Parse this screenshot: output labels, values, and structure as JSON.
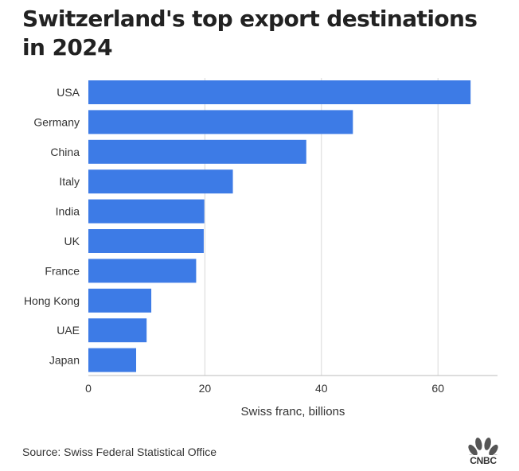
{
  "chart_data": {
    "type": "bar",
    "orientation": "horizontal",
    "title": "Switzerland's top export destinations in 2024",
    "categories": [
      "USA",
      "Germany",
      "China",
      "Italy",
      "India",
      "UK",
      "France",
      "Hong Kong",
      "UAE",
      "Japan"
    ],
    "values": [
      65.6,
      45.4,
      37.4,
      24.8,
      19.9,
      19.8,
      18.5,
      10.8,
      10.0,
      8.2
    ],
    "xlabel": "Swiss franc, billions",
    "ylabel": "",
    "xlim": [
      0,
      70
    ],
    "xticks": [
      0,
      20,
      40,
      60
    ],
    "grid": true,
    "bar_color": "#3d7be6"
  },
  "footer": {
    "source": "Source: Swiss Federal Statistical Office",
    "logo_text": "CNBC"
  },
  "colors": {
    "bar": "#3d7be6",
    "grid": "#d9d9d9",
    "axis": "#bbbbbb"
  }
}
